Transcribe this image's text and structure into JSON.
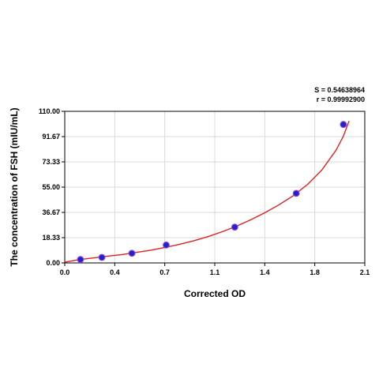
{
  "chart_data": {
    "type": "scatter",
    "title": "",
    "xlabel": "Corrected OD",
    "ylabel": "The concentration of FSH (mIU/mL)",
    "xlim": [
      0,
      2.1
    ],
    "ylim": [
      0,
      110
    ],
    "x_ticks": [
      "0.0",
      "0.4",
      "0.7",
      "1.1",
      "1.4",
      "1.8",
      "2.1"
    ],
    "x_tick_values": [
      0.0,
      0.35,
      0.7,
      1.05,
      1.4,
      1.75,
      2.1
    ],
    "y_ticks": [
      "0.00",
      "18.33",
      "36.67",
      "55.00",
      "73.33",
      "91.67",
      "110.00"
    ],
    "y_tick_values": [
      0,
      18.33,
      36.67,
      55.0,
      73.33,
      91.67,
      110.0
    ],
    "grid": true,
    "points": {
      "x": [
        0.11,
        0.26,
        0.47,
        0.71,
        1.19,
        1.62,
        1.95
      ],
      "y": [
        2.5,
        4.0,
        7.0,
        13.0,
        26.0,
        50.5,
        100.5
      ]
    },
    "fit": {
      "model": "exponential",
      "x_range": [
        0.0,
        1.99
      ],
      "points": [
        [
          0.0,
          0.5
        ],
        [
          0.1,
          2.4
        ],
        [
          0.2,
          3.6
        ],
        [
          0.3,
          4.9
        ],
        [
          0.4,
          6.1
        ],
        [
          0.5,
          7.6
        ],
        [
          0.6,
          9.2
        ],
        [
          0.7,
          11.2
        ],
        [
          0.8,
          13.4
        ],
        [
          0.9,
          16.0
        ],
        [
          1.0,
          19.0
        ],
        [
          1.1,
          22.6
        ],
        [
          1.2,
          26.6
        ],
        [
          1.3,
          31.2
        ],
        [
          1.4,
          36.4
        ],
        [
          1.5,
          42.2
        ],
        [
          1.6,
          48.8
        ],
        [
          1.7,
          57.0
        ],
        [
          1.8,
          67.5
        ],
        [
          1.9,
          82.0
        ],
        [
          1.95,
          92.0
        ],
        [
          1.99,
          103.0
        ]
      ]
    },
    "annotations": {
      "s_line": "S = 0.54638964",
      "r_line": "r = 0.99992900"
    },
    "colors": {
      "fit_line": "#e02020",
      "point_fill": "#2222cc",
      "point_edge": "#8844dd",
      "grid": "#d9d9d9",
      "axis": "#000000"
    }
  }
}
